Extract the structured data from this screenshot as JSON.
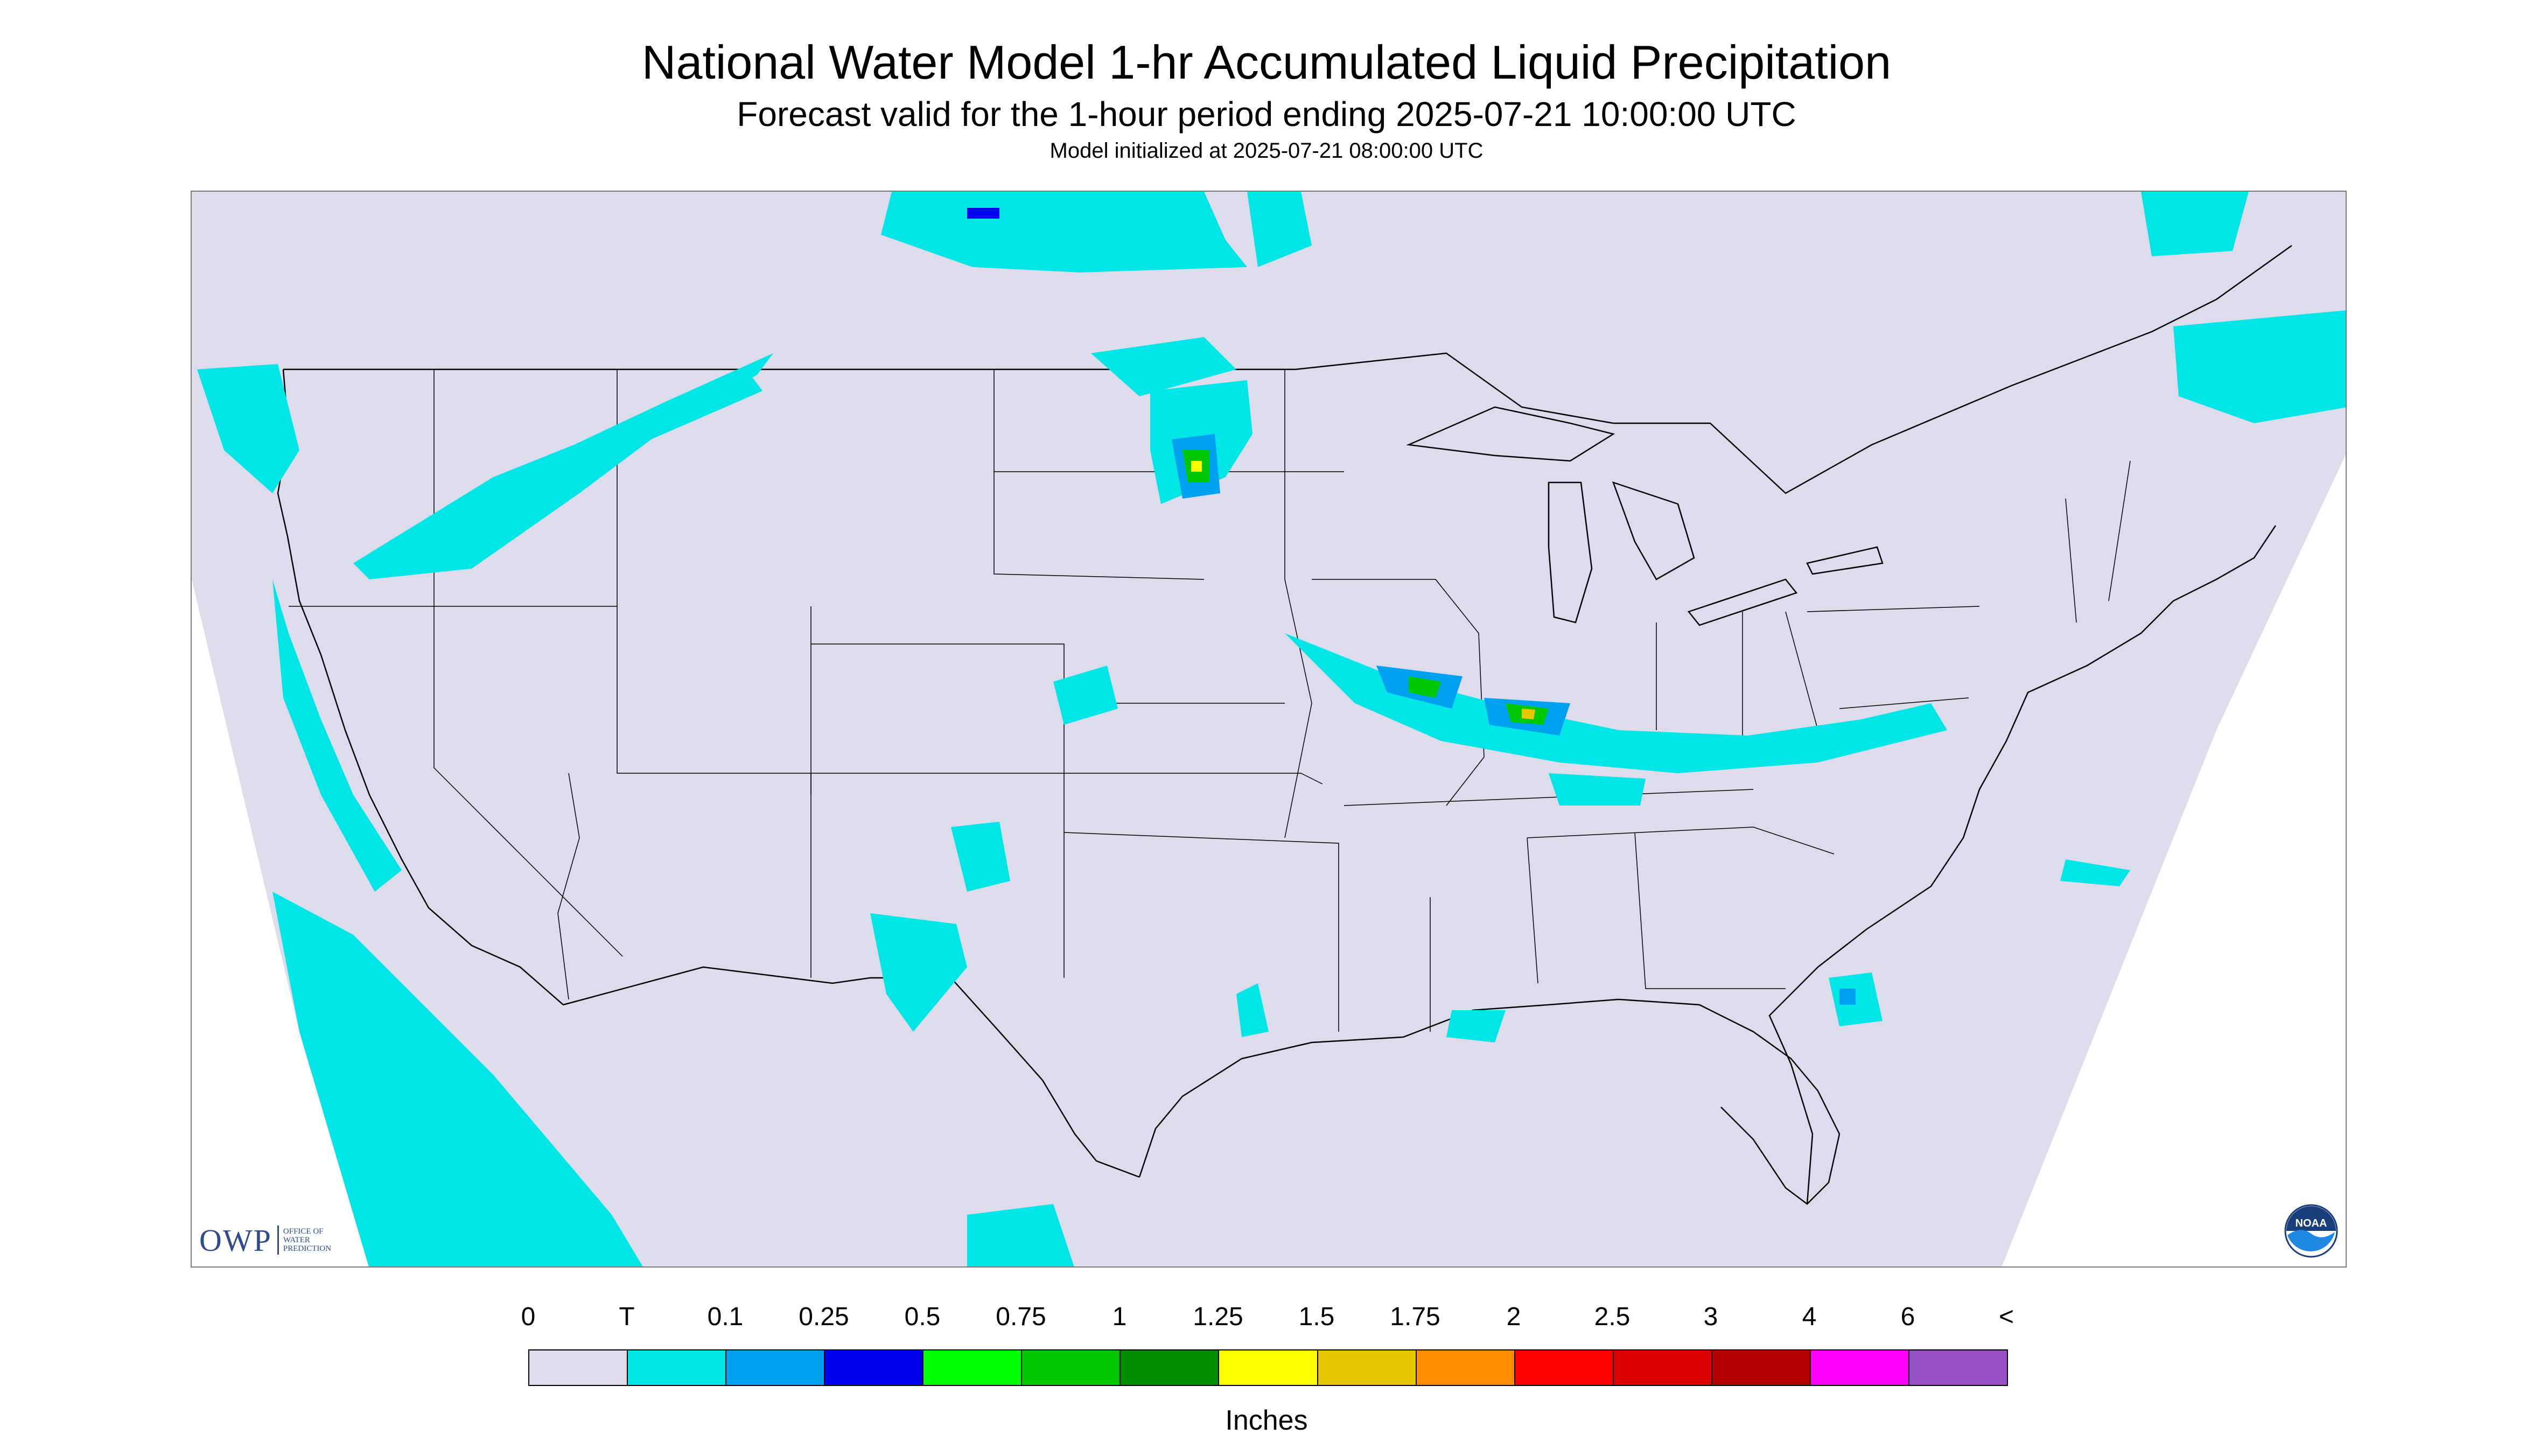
{
  "header": {
    "title": "National Water Model 1-hr Accumulated Liquid Precipitation",
    "subtitle": "Forecast valid for the 1-hour period ending 2025-07-21 10:00:00 UTC",
    "init_line": "Model initialized at 2025-07-21 08:00:00 UTC"
  },
  "map": {
    "region": "CONUS",
    "background_color": "#dcdcec",
    "precip_color": "#00e5e5",
    "land_boundary_color": "#000000"
  },
  "legend": {
    "ticks": [
      "0",
      "T",
      "0.1",
      "0.25",
      "0.5",
      "0.75",
      "1",
      "1.25",
      "1.5",
      "1.75",
      "2",
      "2.5",
      "3",
      "4",
      "6",
      "<"
    ],
    "colors": [
      "#dcdcec",
      "#00e5e5",
      "#00a0f0",
      "#0000f0",
      "#00ff00",
      "#00c800",
      "#008c00",
      "#ffff00",
      "#e6c800",
      "#ff8c00",
      "#ff0000",
      "#dc0000",
      "#b40000",
      "#ff00ff",
      "#9650c8"
    ],
    "units": "Inches"
  },
  "logos": {
    "owp": {
      "letters": "OWP",
      "subtext": [
        "OFFICE OF",
        "WATER",
        "PREDICTION"
      ]
    },
    "noaa": {
      "letters": "NOAA"
    }
  }
}
